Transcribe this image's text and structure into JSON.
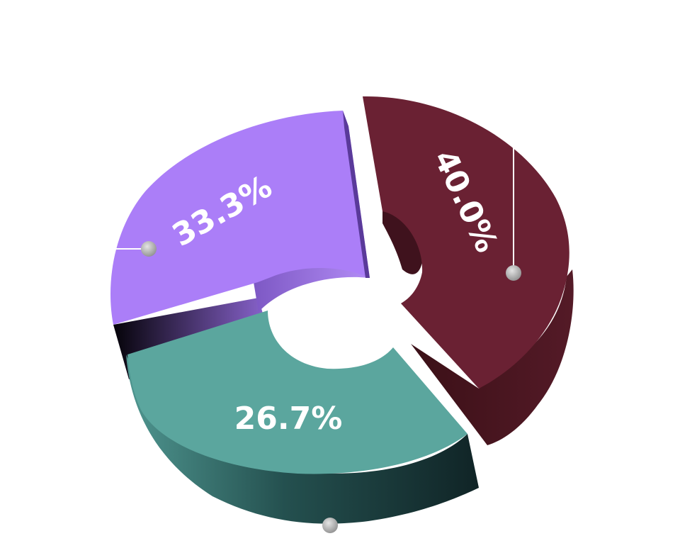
{
  "chart_data": {
    "type": "pie",
    "variant": "3d-donut-exploded",
    "title": "",
    "slices": [
      {
        "label": "40.0%",
        "value": 40.0,
        "color": "#6a2133",
        "exploded": true
      },
      {
        "label": "26.7%",
        "value": 26.7,
        "color": "#5ba69e",
        "exploded": false
      },
      {
        "label": "33.3%",
        "value": 33.3,
        "color": "#ab7ef8",
        "exploded": false
      }
    ],
    "legend": "none"
  }
}
